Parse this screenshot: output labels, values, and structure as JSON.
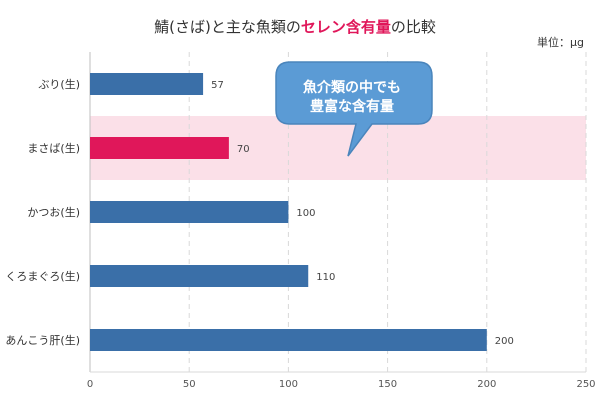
{
  "chart_data": {
    "type": "bar",
    "orientation": "horizontal",
    "title_parts": [
      "鯖(さば)と主な魚類の",
      "セレン含有量",
      "の比較"
    ],
    "unit_label": "単位：μg",
    "categories": [
      "ぶり(生)",
      "まさば(生)",
      "かつお(生)",
      "くろまぐろ(生)",
      "あんこう肝(生)"
    ],
    "values": [
      57,
      70,
      100,
      110,
      200
    ],
    "highlight_category": "まさば(生)",
    "xlim": [
      0,
      250
    ],
    "xticks": [
      0,
      50,
      100,
      150,
      200,
      250
    ],
    "grid": "vertical-dashed",
    "legend": "none",
    "colors": {
      "bar": "#3a6fa8",
      "highlight_bar": "#e0175a",
      "highlight_band": "#fbe0e8",
      "title_highlight": "#e0175a",
      "callout_fill": "#5b9bd5",
      "callout_stroke": "#4a85bc"
    },
    "callout": {
      "lines": [
        "魚介類の中でも",
        "豊富な含有量"
      ]
    }
  }
}
